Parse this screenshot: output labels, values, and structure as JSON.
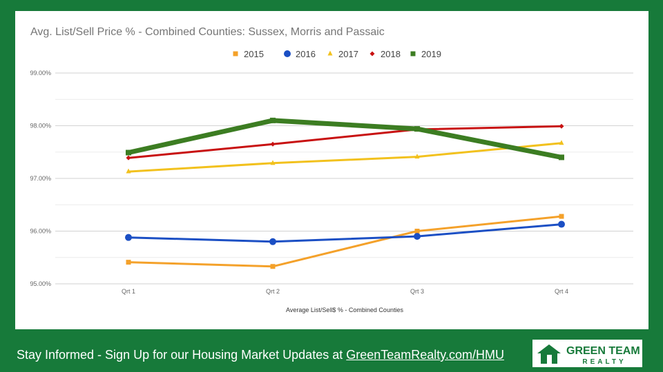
{
  "chart_data": {
    "type": "line",
    "title": "Avg. List/Sell Price % - Combined Counties: Sussex, Morris and Passaic",
    "xlabel": "Average List/Sell$ % - Combined Counties",
    "ylabel": "",
    "categories": [
      "Qrt 1",
      "Qrt 2",
      "Qrt 3",
      "Qrt 4"
    ],
    "ylim": [
      95.0,
      99.0
    ],
    "yticks": [
      "95.00%",
      "96.00%",
      "97.00%",
      "98.00%",
      "99.00%"
    ],
    "ytick_values": [
      95,
      96,
      97,
      98,
      99
    ],
    "grid": true,
    "legend_position": "top",
    "series": [
      {
        "name": "2015",
        "color": "#f4a12a",
        "marker": "square",
        "values": [
          95.41,
          95.33,
          96.0,
          96.28
        ]
      },
      {
        "name": "2016",
        "color": "#1b4fc4",
        "marker": "circle",
        "values": [
          95.88,
          95.8,
          95.9,
          96.13
        ]
      },
      {
        "name": "2017",
        "color": "#f2c11d",
        "marker": "triangle",
        "values": [
          97.13,
          97.29,
          97.41,
          97.67
        ]
      },
      {
        "name": "2018",
        "color": "#c81111",
        "marker": "diamond",
        "values": [
          97.39,
          97.65,
          97.93,
          97.99
        ]
      },
      {
        "name": "2019",
        "color": "#3c7d22",
        "marker": "square",
        "values": [
          97.49,
          98.1,
          97.94,
          97.4
        ]
      }
    ]
  },
  "footer": {
    "text": "Stay Informed - Sign Up for our Housing Market Updates at ",
    "link": "GreenTeamRealty.com/HMU"
  },
  "logo": {
    "line1": "GREEN TEAM",
    "line2": "REALTY",
    "color": "#177a3a"
  }
}
